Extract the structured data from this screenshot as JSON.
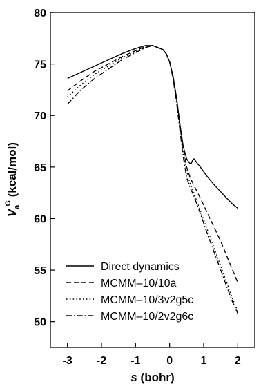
{
  "chart_data": {
    "type": "line",
    "xlabel": {
      "var": "s",
      "unit": " (bohr)"
    },
    "ylabel": {
      "var": "V",
      "sub": "a",
      "sup": "G",
      "unit": " (kcal/mol)"
    },
    "xlim": [
      -3.5,
      2.5
    ],
    "ylim": [
      47.5,
      80
    ],
    "xticks": [
      -3,
      -2,
      -1,
      0,
      1,
      2
    ],
    "yticks": [
      50,
      55,
      60,
      65,
      70,
      75,
      80
    ],
    "grid": false,
    "legend_position": "bottom-left",
    "series": [
      {
        "name": "Direct dynamics",
        "dash": "solid",
        "x": [
          -3.0,
          -2.6,
          -2.2,
          -1.8,
          -1.4,
          -1.0,
          -0.7,
          -0.5,
          -0.35,
          -0.2,
          -0.1,
          0.0,
          0.1,
          0.2,
          0.3,
          0.4,
          0.5,
          0.58,
          0.63,
          0.68,
          0.72,
          0.78,
          0.9,
          1.1,
          1.3,
          1.5,
          1.7,
          1.85,
          2.0
        ],
        "y": [
          73.6,
          74.2,
          74.8,
          75.4,
          76.0,
          76.5,
          76.8,
          76.8,
          76.6,
          76.4,
          76.0,
          75.2,
          73.8,
          71.8,
          69.2,
          67.0,
          65.8,
          65.4,
          65.3,
          65.7,
          65.8,
          65.5,
          65.0,
          64.1,
          63.3,
          62.6,
          61.9,
          61.4,
          61.0
        ]
      },
      {
        "name": "MCMM–10/10a",
        "dash": "dashed",
        "x": [
          -3.0,
          -2.6,
          -2.2,
          -1.8,
          -1.4,
          -1.0,
          -0.7,
          -0.5,
          -0.35,
          -0.2,
          -0.1,
          0.0,
          0.1,
          0.2,
          0.3,
          0.4,
          0.5,
          0.6,
          0.7,
          0.9,
          1.1,
          1.3,
          1.5,
          1.7,
          1.85,
          2.0
        ],
        "y": [
          72.4,
          73.4,
          74.3,
          75.0,
          75.7,
          76.3,
          76.7,
          76.8,
          76.6,
          76.4,
          76.0,
          75.2,
          73.8,
          71.8,
          69.2,
          66.8,
          65.0,
          64.0,
          63.3,
          62.0,
          60.6,
          59.2,
          57.8,
          56.2,
          55.0,
          53.8
        ]
      },
      {
        "name": "MCMM–10/3v2g5c",
        "dash": "dotted",
        "x": [
          -3.0,
          -2.6,
          -2.2,
          -1.8,
          -1.4,
          -1.0,
          -0.7,
          -0.5,
          -0.35,
          -0.2,
          -0.1,
          0.0,
          0.1,
          0.2,
          0.3,
          0.4,
          0.5,
          0.6,
          0.7,
          0.9,
          1.1,
          1.3,
          1.5,
          1.7,
          1.85,
          2.0
        ],
        "y": [
          71.8,
          73.0,
          74.0,
          74.8,
          75.6,
          76.2,
          76.6,
          76.8,
          76.6,
          76.4,
          76.0,
          75.2,
          73.8,
          71.6,
          69.0,
          66.5,
          64.6,
          63.4,
          62.6,
          60.8,
          59.0,
          57.2,
          55.4,
          53.6,
          52.2,
          51.0
        ]
      },
      {
        "name": "MCMM–10/2v2g6c",
        "dash": "dashdot",
        "x": [
          -3.0,
          -2.6,
          -2.2,
          -1.8,
          -1.4,
          -1.0,
          -0.7,
          -0.5,
          -0.35,
          -0.2,
          -0.1,
          0.0,
          0.1,
          0.2,
          0.3,
          0.4,
          0.5,
          0.6,
          0.7,
          0.9,
          1.1,
          1.3,
          1.5,
          1.7,
          1.85,
          2.0
        ],
        "y": [
          71.1,
          72.5,
          73.6,
          74.5,
          75.4,
          76.1,
          76.6,
          76.8,
          76.6,
          76.4,
          76.0,
          75.2,
          73.6,
          71.4,
          68.6,
          66.0,
          64.0,
          63.0,
          62.3,
          60.5,
          58.6,
          56.8,
          55.0,
          53.2,
          51.9,
          50.8
        ]
      }
    ]
  }
}
